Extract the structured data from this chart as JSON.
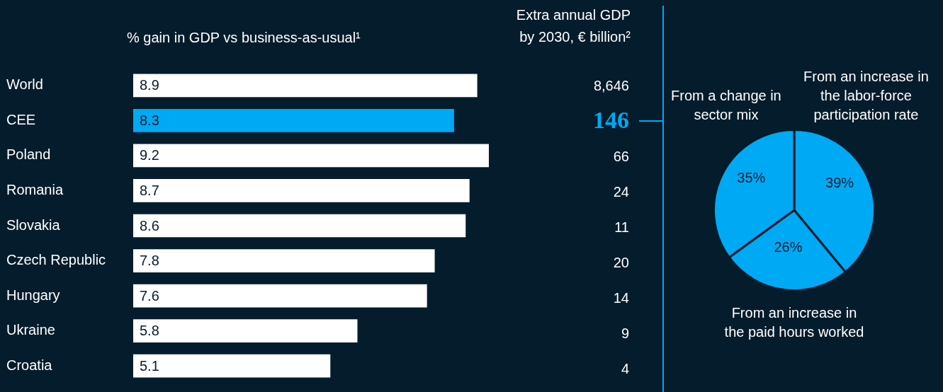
{
  "chart_data": [
    {
      "type": "bar",
      "orientation": "horizontal",
      "title": "% gain in GDP vs business-as-usual¹",
      "tick_labels": "y",
      "data_labels": true,
      "categories": [
        "World",
        "CEE",
        "Poland",
        "Romania",
        "Slovakia",
        "Czech Republic",
        "Hungary",
        "Ukraine",
        "Croatia"
      ],
      "values": [
        8.9,
        8.3,
        9.2,
        8.7,
        8.6,
        7.8,
        7.6,
        5.8,
        5.1
      ],
      "colors": [
        "#ffffff",
        "#00a9f4",
        "#ffffff",
        "#ffffff",
        "#ffffff",
        "#ffffff",
        "#ffffff",
        "#ffffff",
        "#ffffff"
      ]
    },
    {
      "type": "other",
      "title": "Extra annual GDP by 2030, € billion²",
      "color": "#ffffff",
      "categories": [
        null,
        null,
        null,
        null,
        null,
        null,
        null,
        null,
        null
      ],
      "value_labels": [
        "8,646",
        "146",
        "66",
        "24",
        "11",
        "20",
        "14",
        "9",
        "4"
      ],
      "colors": [
        "#ffffff",
        "#00a9f4",
        "#ffffff",
        "#ffffff",
        "#ffffff",
        "#ffffff",
        "#ffffff",
        "#ffffff",
        "#ffffff"
      ]
    },
    {
      "type": "pie",
      "categories": [
        "From an increase in the labor-force participation rate",
        "From an increase in the paid hours worked",
        "From a change in sector mix"
      ],
      "values": [
        39,
        26,
        35
      ],
      "value_labels": [
        "39%",
        "26%",
        "35%"
      ],
      "colors": [
        "#00a9f4",
        "#00a9f4",
        "#00a9f4"
      ]
    }
  ]
}
